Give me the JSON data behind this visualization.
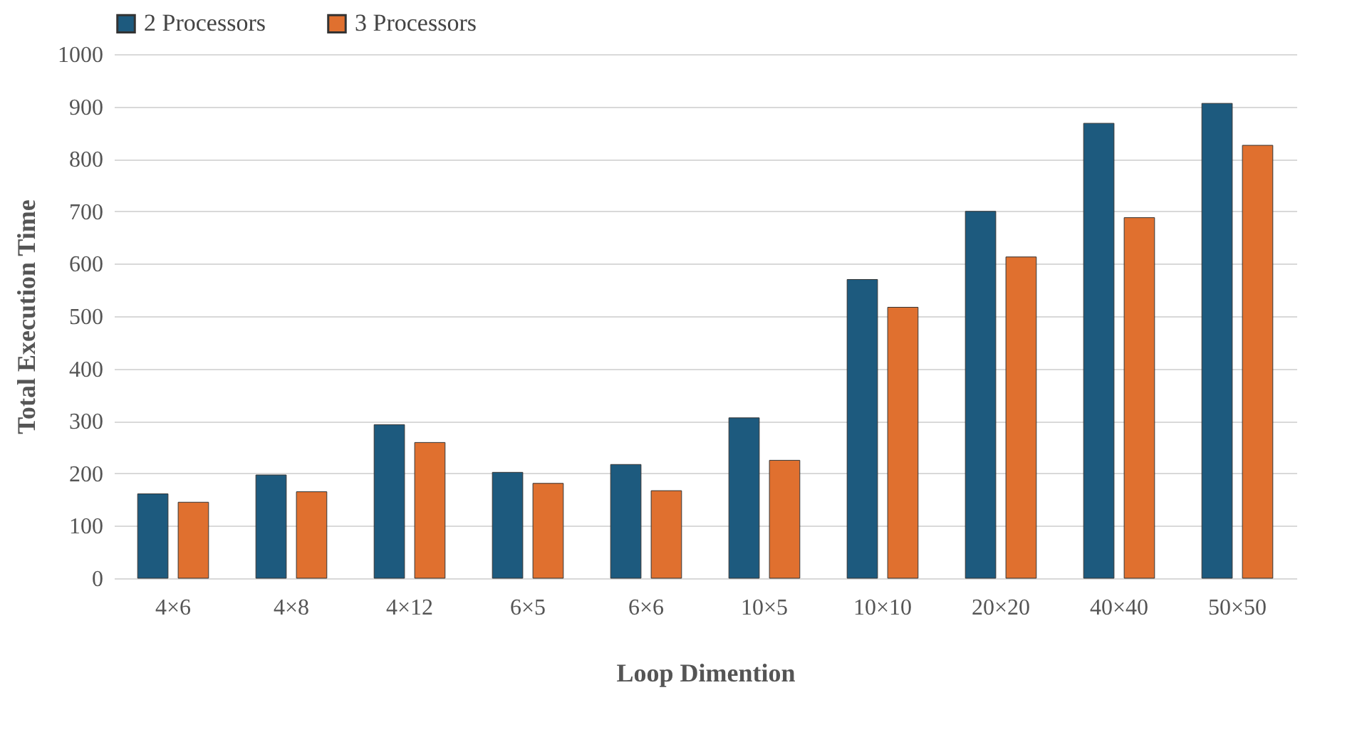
{
  "chart_data": {
    "type": "bar",
    "xlabel": "Loop Dimention",
    "ylabel": "Total Execution Time",
    "categories": [
      "4×6",
      "4×8",
      "4×12",
      "6×5",
      "6×6",
      "10×5",
      "10×10",
      "20×20",
      "40×40",
      "50×50"
    ],
    "series": [
      {
        "name": "2 Processors",
        "color": "#1d5a7e",
        "values": [
          161,
          197,
          293,
          202,
          217,
          306,
          570,
          700,
          868,
          906
        ]
      },
      {
        "name": "3 Processors",
        "color": "#e0702f",
        "values": [
          145,
          165,
          259,
          181,
          167,
          225,
          517,
          613,
          688,
          826
        ]
      }
    ],
    "ylim": [
      0,
      1000
    ],
    "yticks": [
      0,
      100,
      200,
      300,
      400,
      500,
      600,
      700,
      800,
      900,
      1000
    ],
    "grid": "y",
    "legend": "top"
  }
}
